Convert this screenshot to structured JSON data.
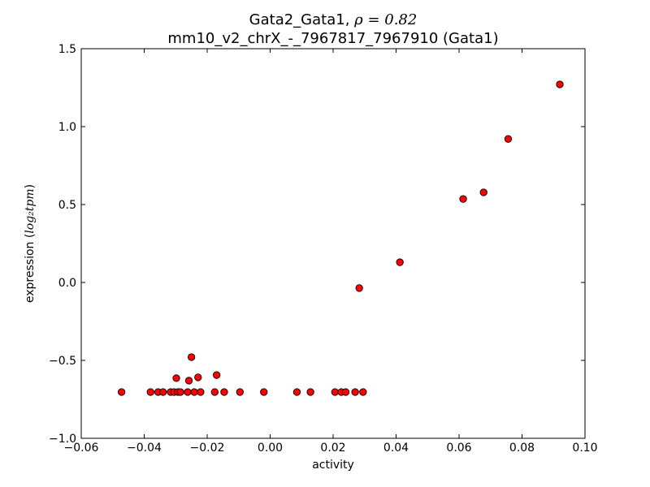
{
  "chart_data": {
    "type": "scatter",
    "title_line1_prefix": "Gata2_Gata1, ",
    "title_line1_math": "ρ = 0.82",
    "title_line2": "mm10_v2_chrX_-_7967817_7967910 (Gata1)",
    "xlabel": "activity",
    "ylabel_prefix": "expression (",
    "ylabel_math": "log₂tpm",
    "ylabel_suffix": ")",
    "xlim": [
      -0.06,
      0.1
    ],
    "ylim": [
      -1.0,
      1.5
    ],
    "x_ticks": [
      -0.06,
      -0.04,
      -0.02,
      0.0,
      0.02,
      0.04,
      0.06,
      0.08,
      0.1
    ],
    "x_tick_labels": [
      "−0.06",
      "−0.04",
      "−0.02",
      "0.00",
      "0.02",
      "0.04",
      "0.06",
      "0.08",
      "0.10"
    ],
    "y_ticks": [
      -1.0,
      -0.5,
      0.0,
      0.5,
      1.0,
      1.5
    ],
    "y_tick_labels": [
      "−1.0",
      "−0.5",
      "0.0",
      "0.5",
      "1.0",
      "1.5"
    ],
    "marker_color": "#ff0000",
    "marker_edge_color": "#000000",
    "grid": false,
    "points": [
      {
        "x": -0.0472,
        "y": -0.703
      },
      {
        "x": -0.038,
        "y": -0.703
      },
      {
        "x": -0.0356,
        "y": -0.703
      },
      {
        "x": -0.034,
        "y": -0.703
      },
      {
        "x": -0.0316,
        "y": -0.703
      },
      {
        "x": -0.0305,
        "y": -0.703
      },
      {
        "x": -0.0298,
        "y": -0.614
      },
      {
        "x": -0.0293,
        "y": -0.703
      },
      {
        "x": -0.0285,
        "y": -0.703
      },
      {
        "x": -0.0262,
        "y": -0.703
      },
      {
        "x": -0.0258,
        "y": -0.63
      },
      {
        "x": -0.025,
        "y": -0.479
      },
      {
        "x": -0.0241,
        "y": -0.703
      },
      {
        "x": -0.0229,
        "y": -0.609
      },
      {
        "x": -0.0221,
        "y": -0.703
      },
      {
        "x": -0.0176,
        "y": -0.703
      },
      {
        "x": -0.017,
        "y": -0.594
      },
      {
        "x": -0.0146,
        "y": -0.703
      },
      {
        "x": -0.0096,
        "y": -0.703
      },
      {
        "x": -0.002,
        "y": -0.703
      },
      {
        "x": 0.0085,
        "y": -0.703
      },
      {
        "x": 0.0128,
        "y": -0.703
      },
      {
        "x": 0.0206,
        "y": -0.703
      },
      {
        "x": 0.0226,
        "y": -0.703
      },
      {
        "x": 0.024,
        "y": -0.703
      },
      {
        "x": 0.027,
        "y": -0.703
      },
      {
        "x": 0.0295,
        "y": -0.703
      },
      {
        "x": 0.0283,
        "y": -0.036
      },
      {
        "x": 0.0412,
        "y": 0.13
      },
      {
        "x": 0.0613,
        "y": 0.536
      },
      {
        "x": 0.0678,
        "y": 0.578
      },
      {
        "x": 0.0756,
        "y": 0.921
      },
      {
        "x": 0.092,
        "y": 1.271
      }
    ]
  }
}
